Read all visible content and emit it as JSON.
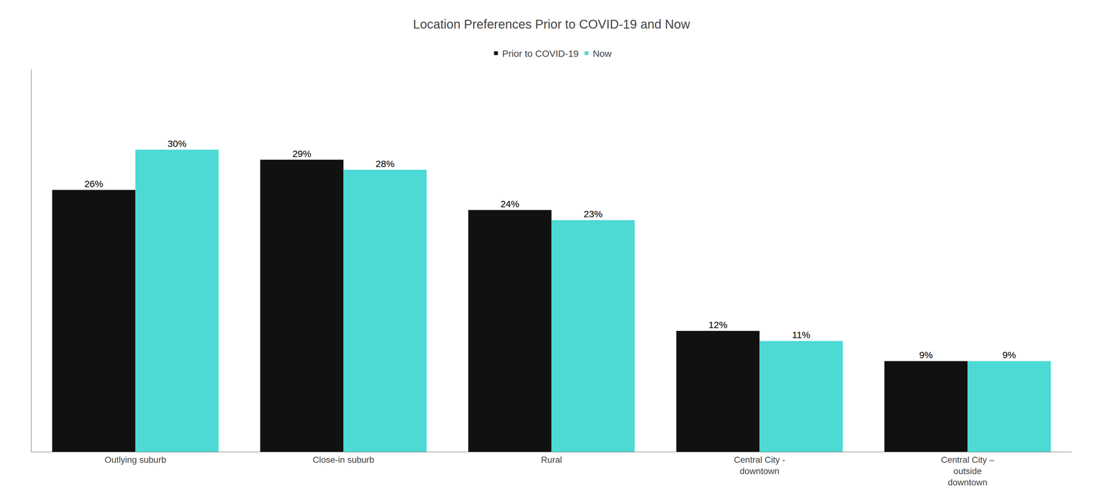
{
  "chart_data": {
    "type": "bar",
    "title": "Location Preferences Prior to COVID-19 and Now",
    "categories": [
      "Outlying suburb",
      "Close-in suburb",
      "Rural",
      "Central City -\ndowntown",
      "Central City –\noutside\ndowntown"
    ],
    "series": [
      {
        "name": "Prior to COVID-19",
        "color": "#111111",
        "values": [
          26,
          29,
          24,
          12,
          9
        ],
        "value_labels": [
          "26%",
          "29%",
          "24%",
          "12%",
          "9%"
        ]
      },
      {
        "name": "Now",
        "color": "#4dd9d5",
        "values": [
          30,
          28,
          23,
          11,
          9
        ],
        "value_labels": [
          "30%",
          "28%",
          "23%",
          "11%",
          "9%"
        ]
      }
    ],
    "ylim": [
      0,
      38
    ],
    "grid": false,
    "legend": "top",
    "data_labels": true,
    "tick_labels": "x"
  }
}
